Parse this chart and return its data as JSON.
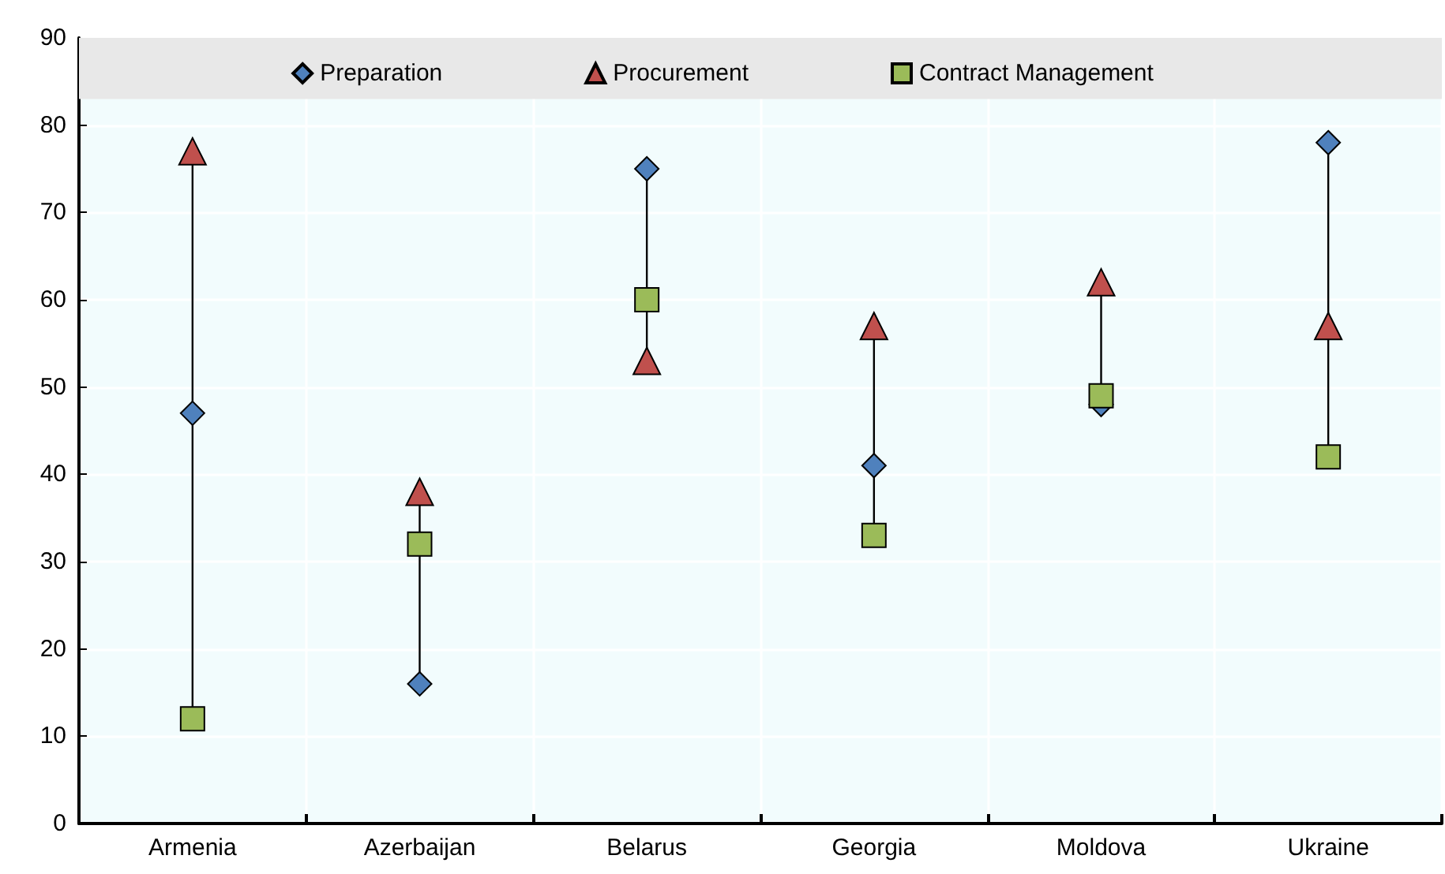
{
  "chart_data": {
    "type": "scatter",
    "categories": [
      "Armenia",
      "Azerbaijan",
      "Belarus",
      "Georgia",
      "Moldova",
      "Ukraine"
    ],
    "series": [
      {
        "name": "Preparation",
        "color": "#4f81bd",
        "marker": "diamond",
        "values": [
          47,
          16,
          75,
          41,
          48,
          78
        ]
      },
      {
        "name": "Procurement",
        "color": "#c0504d",
        "marker": "triangle",
        "values": [
          77,
          38,
          53,
          57,
          62,
          57
        ]
      },
      {
        "name": "Contract Management",
        "color": "#9bbb59",
        "marker": "square",
        "values": [
          12,
          32,
          60,
          33,
          49,
          42
        ]
      }
    ],
    "bands": [
      {
        "axis": "y",
        "from": 83,
        "to": 90,
        "color": "#e8e8e8"
      }
    ],
    "ylim": [
      0,
      90
    ],
    "yticks": [
      0,
      10,
      20,
      30,
      40,
      50,
      60,
      70,
      80,
      90
    ],
    "grid": true,
    "legend": "top"
  }
}
